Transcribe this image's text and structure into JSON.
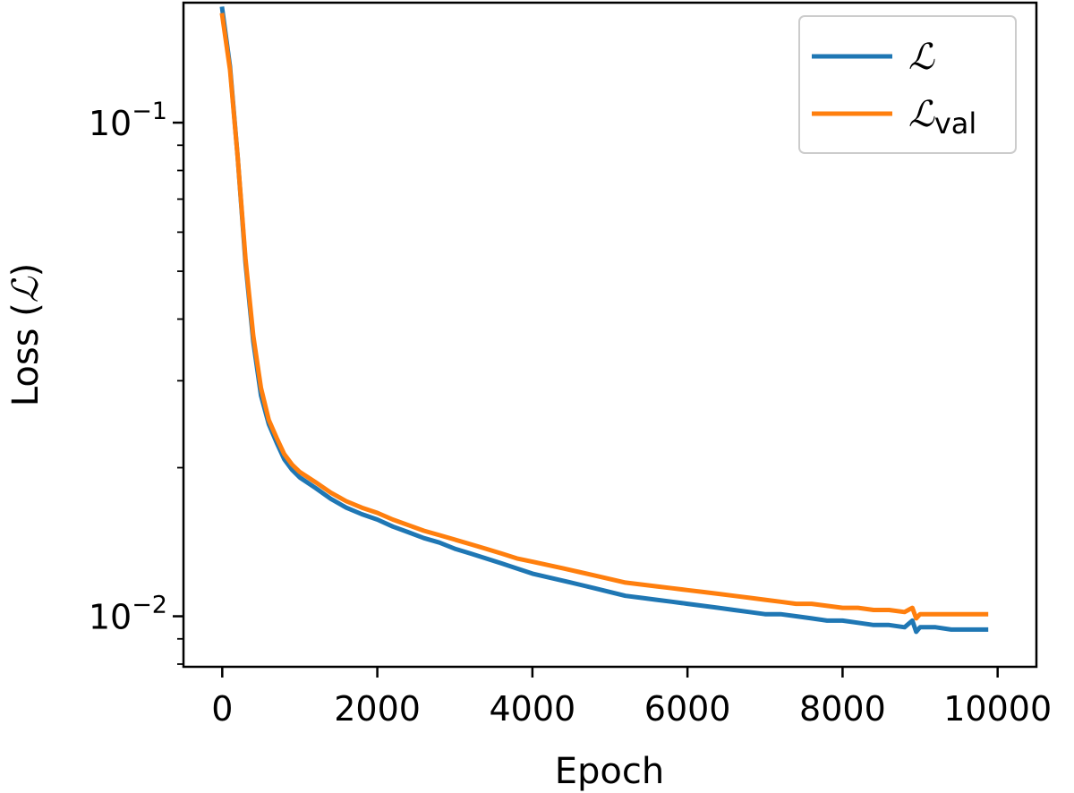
{
  "chart_data": {
    "type": "line",
    "xlabel": "Epoch",
    "ylabel_prefix": "Loss (",
    "ylabel_symbol": "ℒ",
    "ylabel_suffix": ")",
    "xlim": [
      -500,
      10500
    ],
    "ylim": [
      0.0079,
      0.175
    ],
    "yscale": "log",
    "grid": false,
    "legend_position": "top-right",
    "x_ticks": [
      0,
      2000,
      4000,
      6000,
      8000,
      10000
    ],
    "x_tick_labels": [
      "0",
      "2000",
      "4000",
      "6000",
      "8000",
      "10000"
    ],
    "y_ticks": [
      0.1,
      0.01
    ],
    "y_tick_labels": [
      {
        "base": "10",
        "exp": "−1"
      },
      {
        "base": "10",
        "exp": "−2"
      }
    ],
    "series": [
      {
        "name": "ℒ",
        "name_sub": "",
        "color": "#1f77b4",
        "x": [
          0,
          100,
          200,
          300,
          400,
          500,
          600,
          700,
          800,
          900,
          1000,
          1200,
          1400,
          1600,
          1800,
          2000,
          2200,
          2400,
          2600,
          2800,
          3000,
          3200,
          3400,
          3600,
          3800,
          4000,
          4200,
          4400,
          4600,
          4800,
          5000,
          5200,
          5400,
          5600,
          5800,
          6000,
          6200,
          6400,
          6600,
          6800,
          7000,
          7200,
          7400,
          7600,
          7800,
          8000,
          8200,
          8400,
          8600,
          8800,
          8900,
          8950,
          9000,
          9200,
          9400,
          9600,
          9800,
          9850
        ],
        "y": [
          0.17,
          0.13,
          0.085,
          0.052,
          0.036,
          0.028,
          0.0245,
          0.0225,
          0.0208,
          0.0198,
          0.0191,
          0.0182,
          0.0173,
          0.0166,
          0.0161,
          0.0157,
          0.0152,
          0.0148,
          0.0144,
          0.0141,
          0.0137,
          0.0134,
          0.0131,
          0.0128,
          0.0125,
          0.0122,
          0.012,
          0.0118,
          0.0116,
          0.0114,
          0.0112,
          0.011,
          0.0109,
          0.0108,
          0.0107,
          0.0106,
          0.0105,
          0.0104,
          0.0103,
          0.0102,
          0.0101,
          0.0101,
          0.01,
          0.0099,
          0.0098,
          0.0098,
          0.0097,
          0.0096,
          0.0096,
          0.0095,
          0.0098,
          0.0093,
          0.0095,
          0.0095,
          0.0094,
          0.0094,
          0.0094,
          0.0094
        ]
      },
      {
        "name": "ℒ",
        "name_sub": "val",
        "color": "#ff7f0e",
        "x": [
          0,
          100,
          200,
          300,
          400,
          500,
          600,
          700,
          800,
          900,
          1000,
          1200,
          1400,
          1600,
          1800,
          2000,
          2200,
          2400,
          2600,
          2800,
          3000,
          3200,
          3400,
          3600,
          3800,
          4000,
          4200,
          4400,
          4600,
          4800,
          5000,
          5200,
          5400,
          5600,
          5800,
          6000,
          6200,
          6400,
          6600,
          6800,
          7000,
          7200,
          7400,
          7600,
          7800,
          8000,
          8200,
          8400,
          8600,
          8800,
          8900,
          8950,
          9000,
          9200,
          9400,
          9600,
          9800,
          9850
        ],
        "y": [
          0.165,
          0.128,
          0.085,
          0.053,
          0.037,
          0.029,
          0.025,
          0.023,
          0.0213,
          0.0203,
          0.0196,
          0.0187,
          0.0178,
          0.0171,
          0.0166,
          0.0162,
          0.0157,
          0.0153,
          0.0149,
          0.0146,
          0.0143,
          0.014,
          0.0137,
          0.0134,
          0.0131,
          0.0129,
          0.0127,
          0.0125,
          0.0123,
          0.0121,
          0.0119,
          0.0117,
          0.0116,
          0.0115,
          0.0114,
          0.0113,
          0.0112,
          0.0111,
          0.011,
          0.0109,
          0.0108,
          0.0107,
          0.0106,
          0.0106,
          0.0105,
          0.0104,
          0.0104,
          0.0103,
          0.0103,
          0.0102,
          0.0104,
          0.0099,
          0.0101,
          0.0101,
          0.0101,
          0.0101,
          0.0101,
          0.0101
        ]
      }
    ]
  }
}
